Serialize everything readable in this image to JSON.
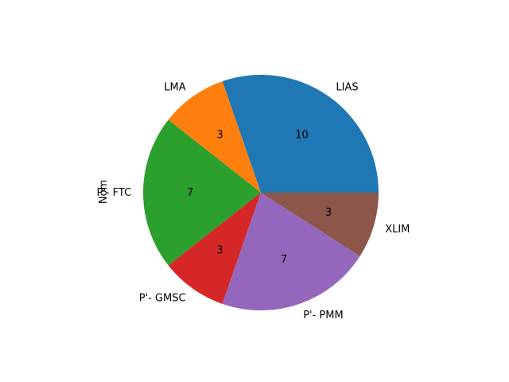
{
  "chart_data": {
    "type": "pie",
    "title": "",
    "ylabel": "Nom",
    "start_angle_deg": 0,
    "direction": "counterclockwise",
    "slices": [
      {
        "label": "LIAS",
        "value": 10,
        "color": "#1f77b4"
      },
      {
        "label": "LMA",
        "value": 3,
        "color": "#ff7f0e"
      },
      {
        "label": "P'- FTC",
        "value": 7,
        "color": "#2ca02c"
      },
      {
        "label": "P'- GMSC",
        "value": 3,
        "color": "#d62728"
      },
      {
        "label": "P'- PMM",
        "value": 7,
        "color": "#9467bd"
      },
      {
        "label": "XLIM",
        "value": 3,
        "color": "#8c564b"
      }
    ]
  }
}
